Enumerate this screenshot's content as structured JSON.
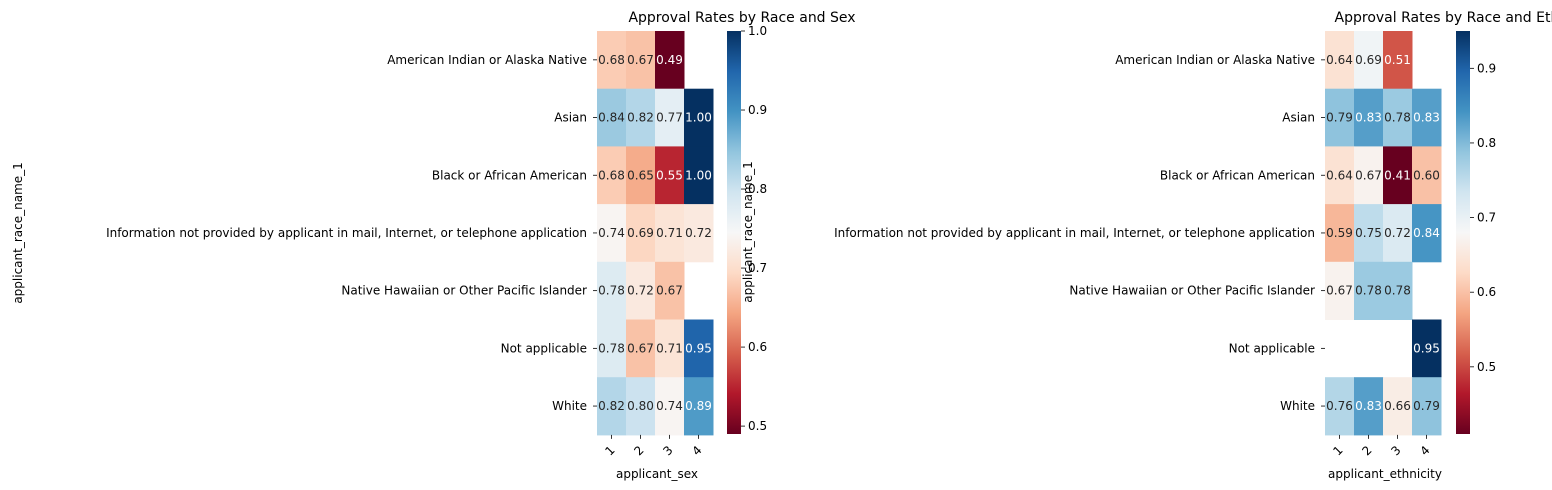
{
  "chart_data": [
    {
      "type": "heatmap",
      "title": "Approval Rates by Race and Sex",
      "xlabel": "applicant_sex",
      "ylabel": "applicant_race_name_1",
      "x_categories": [
        "1",
        "2",
        "3",
        "4"
      ],
      "y_categories": [
        "American Indian or Alaska Native",
        "Asian",
        "Black or African American",
        "Information not provided by applicant in mail, Internet, or telephone application",
        "Native Hawaiian or Other Pacific Islander",
        "Not applicable",
        "White"
      ],
      "values": [
        [
          0.68,
          0.67,
          0.49,
          null
        ],
        [
          0.84,
          0.82,
          0.77,
          1.0
        ],
        [
          0.68,
          0.65,
          0.55,
          1.0
        ],
        [
          0.74,
          0.69,
          0.71,
          0.72
        ],
        [
          0.78,
          0.72,
          0.67,
          null
        ],
        [
          0.78,
          0.67,
          0.71,
          0.95
        ],
        [
          0.82,
          0.8,
          0.74,
          0.89
        ]
      ],
      "colormap": "RdBu",
      "vmin": 0.49,
      "vmax": 1.0,
      "colorbar_ticks": [
        0.5,
        0.6,
        0.7,
        0.8,
        0.9,
        1.0
      ],
      "annotation_format": "0.00"
    },
    {
      "type": "heatmap",
      "title": "Approval Rates by Race and Ethnicity",
      "xlabel": "applicant_ethnicity",
      "ylabel": "applicant_race_name_1",
      "x_categories": [
        "1",
        "2",
        "3",
        "4"
      ],
      "y_categories": [
        "American Indian or Alaska Native",
        "Asian",
        "Black or African American",
        "Information not provided by applicant in mail, Internet, or telephone application",
        "Native Hawaiian or Other Pacific Islander",
        "Not applicable",
        "White"
      ],
      "values": [
        [
          0.64,
          0.69,
          0.51,
          null
        ],
        [
          0.79,
          0.83,
          0.78,
          0.83
        ],
        [
          0.64,
          0.67,
          0.41,
          0.6
        ],
        [
          0.59,
          0.75,
          0.72,
          0.84
        ],
        [
          0.67,
          0.78,
          0.78,
          null
        ],
        [
          null,
          null,
          null,
          0.95
        ],
        [
          0.76,
          0.83,
          0.66,
          0.79
        ]
      ],
      "colormap": "RdBu",
      "vmin": 0.41,
      "vmax": 0.95,
      "colorbar_ticks": [
        0.5,
        0.6,
        0.7,
        0.8,
        0.9
      ],
      "annotation_format": "0.00"
    }
  ]
}
